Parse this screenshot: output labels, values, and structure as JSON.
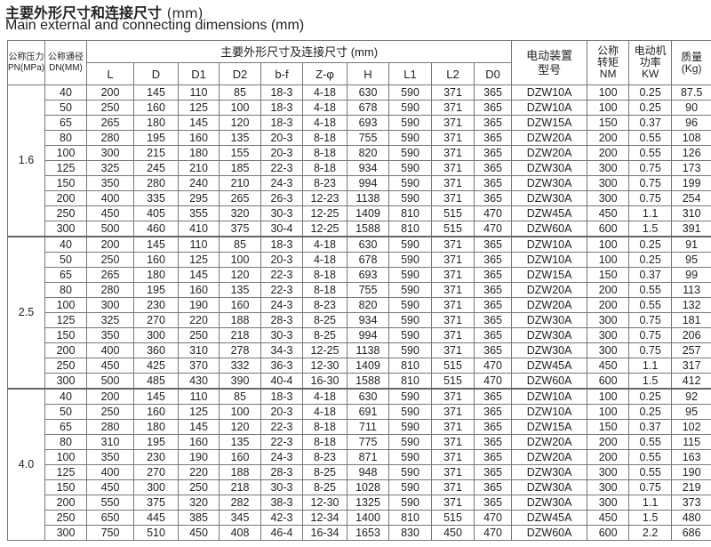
{
  "title_cn": "主要外形尺寸和连接尺寸",
  "title_unit": "(mm)",
  "title_en": "Main external and connecting dimensions (mm)",
  "headers": {
    "pn": "公称压力PN(MPa)",
    "dn": "公称通径DN(MM)",
    "dims_group": "主要外形尺寸及连接尺寸 (mm)",
    "dims": [
      "L",
      "D",
      "D1",
      "D2",
      "b-f",
      "Z-φ",
      "H",
      "L1",
      "L2",
      "D0"
    ],
    "actuator": "电动装置型号",
    "torque": "公称转矩NM",
    "power": "电动机功率KW",
    "mass": "质量(Kg)"
  },
  "groups": [
    {
      "pn": "1.6",
      "rows": [
        [
          "40",
          "200",
          "145",
          "110",
          "85",
          "18-3",
          "4-18",
          "630",
          "590",
          "371",
          "365",
          "DZW10A",
          "100",
          "0.25",
          "87.5"
        ],
        [
          "50",
          "250",
          "160",
          "125",
          "100",
          "18-3",
          "4-18",
          "678",
          "590",
          "371",
          "365",
          "DZW10A",
          "100",
          "0.25",
          "90"
        ],
        [
          "65",
          "265",
          "180",
          "145",
          "120",
          "18-3",
          "4-18",
          "693",
          "590",
          "371",
          "365",
          "DZW15A",
          "150",
          "0.37",
          "96"
        ],
        [
          "80",
          "280",
          "195",
          "160",
          "135",
          "20-3",
          "8-18",
          "755",
          "590",
          "371",
          "365",
          "DZW20A",
          "200",
          "0.55",
          "108"
        ],
        [
          "100",
          "300",
          "215",
          "180",
          "155",
          "20-3",
          "8-18",
          "820",
          "590",
          "371",
          "365",
          "DZW20A",
          "200",
          "0.55",
          "126"
        ],
        [
          "125",
          "325",
          "245",
          "210",
          "185",
          "22-3",
          "8-18",
          "934",
          "590",
          "371",
          "365",
          "DZW30A",
          "300",
          "0.75",
          "173"
        ],
        [
          "150",
          "350",
          "280",
          "240",
          "210",
          "24-3",
          "8-23",
          "994",
          "590",
          "371",
          "365",
          "DZW30A",
          "300",
          "0.75",
          "199"
        ],
        [
          "200",
          "400",
          "335",
          "295",
          "265",
          "26-3",
          "12-23",
          "1138",
          "590",
          "371",
          "365",
          "DZW30A",
          "300",
          "0.75",
          "254"
        ],
        [
          "250",
          "450",
          "405",
          "355",
          "320",
          "30-3",
          "12-25",
          "1409",
          "810",
          "515",
          "470",
          "DZW45A",
          "450",
          "1.1",
          "310"
        ],
        [
          "300",
          "500",
          "460",
          "410",
          "375",
          "30-4",
          "12-25",
          "1588",
          "810",
          "515",
          "470",
          "DZW60A",
          "600",
          "1.5",
          "391"
        ]
      ]
    },
    {
      "pn": "2.5",
      "rows": [
        [
          "40",
          "200",
          "145",
          "110",
          "85",
          "18-3",
          "4-18",
          "630",
          "590",
          "371",
          "365",
          "DZW10A",
          "100",
          "0.25",
          "91"
        ],
        [
          "50",
          "250",
          "160",
          "125",
          "100",
          "20-3",
          "4-18",
          "678",
          "590",
          "371",
          "365",
          "DZW10A",
          "100",
          "0.25",
          "95"
        ],
        [
          "65",
          "265",
          "180",
          "145",
          "120",
          "22-3",
          "8-18",
          "693",
          "590",
          "371",
          "365",
          "DZW15A",
          "150",
          "0.37",
          "99"
        ],
        [
          "80",
          "280",
          "195",
          "160",
          "135",
          "22-3",
          "8-18",
          "755",
          "590",
          "371",
          "365",
          "DZW20A",
          "200",
          "0.55",
          "113"
        ],
        [
          "100",
          "300",
          "230",
          "190",
          "160",
          "24-3",
          "8-23",
          "820",
          "590",
          "371",
          "365",
          "DZW20A",
          "200",
          "0.55",
          "132"
        ],
        [
          "125",
          "325",
          "270",
          "220",
          "188",
          "28-3",
          "8-25",
          "934",
          "590",
          "371",
          "365",
          "DZW30A",
          "300",
          "0.75",
          "181"
        ],
        [
          "150",
          "350",
          "300",
          "250",
          "218",
          "30-3",
          "8-25",
          "994",
          "590",
          "371",
          "365",
          "DZW30A",
          "300",
          "0.75",
          "206"
        ],
        [
          "200",
          "400",
          "360",
          "310",
          "278",
          "34-3",
          "12-25",
          "1138",
          "590",
          "371",
          "365",
          "DZW30A",
          "300",
          "0.75",
          "257"
        ],
        [
          "250",
          "450",
          "425",
          "370",
          "332",
          "36-3",
          "12-30",
          "1409",
          "810",
          "515",
          "470",
          "DZW45A",
          "450",
          "1.1",
          "317"
        ],
        [
          "300",
          "500",
          "485",
          "430",
          "390",
          "40-4",
          "16-30",
          "1588",
          "810",
          "515",
          "470",
          "DZW60A",
          "600",
          "1.5",
          "412"
        ]
      ]
    },
    {
      "pn": "4.0",
      "rows": [
        [
          "40",
          "200",
          "145",
          "110",
          "85",
          "18-3",
          "4-18",
          "630",
          "590",
          "371",
          "365",
          "DZW10A",
          "100",
          "0.25",
          "92"
        ],
        [
          "50",
          "250",
          "160",
          "125",
          "100",
          "20-3",
          "4-18",
          "691",
          "590",
          "371",
          "365",
          "DZW10A",
          "100",
          "0.25",
          "95"
        ],
        [
          "65",
          "280",
          "180",
          "145",
          "120",
          "22-3",
          "8-18",
          "711",
          "590",
          "371",
          "365",
          "DZW15A",
          "150",
          "0.37",
          "102"
        ],
        [
          "80",
          "310",
          "195",
          "160",
          "135",
          "22-3",
          "8-18",
          "775",
          "590",
          "371",
          "365",
          "DZW20A",
          "200",
          "0.55",
          "115"
        ],
        [
          "100",
          "350",
          "230",
          "190",
          "160",
          "24-3",
          "8-23",
          "871",
          "590",
          "371",
          "365",
          "DZW20A",
          "200",
          "0.55",
          "163"
        ],
        [
          "125",
          "400",
          "270",
          "220",
          "188",
          "28-3",
          "8-25",
          "948",
          "590",
          "371",
          "365",
          "DZW30A",
          "300",
          "0.55",
          "190"
        ],
        [
          "150",
          "450",
          "300",
          "250",
          "218",
          "30-3",
          "8-25",
          "1028",
          "590",
          "371",
          "365",
          "DZW30A",
          "300",
          "0.75",
          "219"
        ],
        [
          "200",
          "550",
          "375",
          "320",
          "282",
          "38-3",
          "12-30",
          "1325",
          "590",
          "371",
          "365",
          "DZW30A",
          "300",
          "1.1",
          "373"
        ],
        [
          "250",
          "650",
          "445",
          "385",
          "345",
          "42-3",
          "12-34",
          "1400",
          "810",
          "515",
          "470",
          "DZW45A",
          "450",
          "1.5",
          "480"
        ],
        [
          "300",
          "750",
          "510",
          "450",
          "408",
          "46-4",
          "16-34",
          "1653",
          "830",
          "450",
          "470",
          "DZW60A",
          "600",
          "2.2",
          "686"
        ]
      ]
    }
  ]
}
